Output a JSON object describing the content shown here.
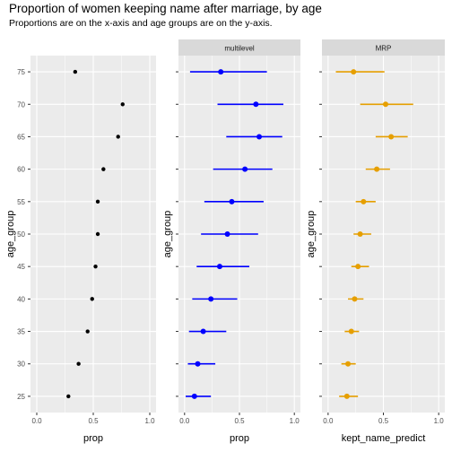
{
  "title": "Proportion of women keeping name after marriage, by age",
  "subtitle": "Proportions are on the x-axis and age groups are on the y-axis.",
  "colors": {
    "panel_bg": "#ebebeb",
    "grid": "#ffffff",
    "strip_bg": "#d9d9d9",
    "axis_text": "#4d4d4d",
    "multilevel": "#0000ff",
    "mrp": "#e69f00",
    "raw": "#000000"
  },
  "chart_data": [
    {
      "type": "scatter",
      "xlabel": "prop",
      "ylabel": "age_group",
      "strip": "",
      "xlim": [
        0,
        1
      ],
      "xticks": [
        "0.0",
        "0.5",
        "1.0"
      ],
      "categories": [
        "25",
        "30",
        "35",
        "40",
        "45",
        "50",
        "55",
        "60",
        "65",
        "70",
        "75"
      ],
      "points": [
        {
          "age_group": "75",
          "x": 0.34
        },
        {
          "age_group": "70",
          "x": 0.76
        },
        {
          "age_group": "65",
          "x": 0.72
        },
        {
          "age_group": "60",
          "x": 0.59
        },
        {
          "age_group": "55",
          "x": 0.54
        },
        {
          "age_group": "50",
          "x": 0.54
        },
        {
          "age_group": "45",
          "x": 0.52
        },
        {
          "age_group": "40",
          "x": 0.49
        },
        {
          "age_group": "35",
          "x": 0.45
        },
        {
          "age_group": "30",
          "x": 0.37
        },
        {
          "age_group": "25",
          "x": 0.28
        }
      ]
    },
    {
      "type": "scatter",
      "xlabel": "prop",
      "ylabel": "age_group",
      "strip": "multilevel",
      "xlim": [
        0,
        1
      ],
      "xticks": [
        "0.0",
        "0.5",
        "1.0"
      ],
      "categories": [
        "25",
        "30",
        "35",
        "40",
        "45",
        "50",
        "55",
        "60",
        "65",
        "70",
        "75"
      ],
      "points": [
        {
          "age_group": "75",
          "x": 0.33,
          "low": 0.05,
          "high": 0.75
        },
        {
          "age_group": "70",
          "x": 0.65,
          "low": 0.3,
          "high": 0.9
        },
        {
          "age_group": "65",
          "x": 0.68,
          "low": 0.38,
          "high": 0.89
        },
        {
          "age_group": "60",
          "x": 0.55,
          "low": 0.26,
          "high": 0.8
        },
        {
          "age_group": "55",
          "x": 0.43,
          "low": 0.18,
          "high": 0.72
        },
        {
          "age_group": "50",
          "x": 0.39,
          "low": 0.15,
          "high": 0.67
        },
        {
          "age_group": "45",
          "x": 0.32,
          "low": 0.11,
          "high": 0.59
        },
        {
          "age_group": "40",
          "x": 0.24,
          "low": 0.07,
          "high": 0.48
        },
        {
          "age_group": "35",
          "x": 0.17,
          "low": 0.04,
          "high": 0.38
        },
        {
          "age_group": "30",
          "x": 0.12,
          "low": 0.03,
          "high": 0.28
        },
        {
          "age_group": "25",
          "x": 0.09,
          "low": 0.01,
          "high": 0.24
        }
      ]
    },
    {
      "type": "scatter",
      "xlabel": "kept_name_predict",
      "ylabel": "age_group",
      "strip": "MRP",
      "xlim": [
        0,
        1
      ],
      "xticks": [
        "0.0",
        "0.5",
        "1.0"
      ],
      "categories": [
        "25",
        "30",
        "35",
        "40",
        "45",
        "50",
        "55",
        "60",
        "65",
        "70",
        "75"
      ],
      "points": [
        {
          "age_group": "75",
          "x": 0.23,
          "low": 0.07,
          "high": 0.51
        },
        {
          "age_group": "70",
          "x": 0.52,
          "low": 0.29,
          "high": 0.77
        },
        {
          "age_group": "65",
          "x": 0.57,
          "low": 0.43,
          "high": 0.72
        },
        {
          "age_group": "60",
          "x": 0.44,
          "low": 0.34,
          "high": 0.56
        },
        {
          "age_group": "55",
          "x": 0.32,
          "low": 0.25,
          "high": 0.43
        },
        {
          "age_group": "50",
          "x": 0.29,
          "low": 0.23,
          "high": 0.39
        },
        {
          "age_group": "45",
          "x": 0.27,
          "low": 0.21,
          "high": 0.37
        },
        {
          "age_group": "40",
          "x": 0.24,
          "low": 0.18,
          "high": 0.32
        },
        {
          "age_group": "35",
          "x": 0.21,
          "low": 0.15,
          "high": 0.28
        },
        {
          "age_group": "30",
          "x": 0.18,
          "low": 0.12,
          "high": 0.25
        },
        {
          "age_group": "25",
          "x": 0.17,
          "low": 0.1,
          "high": 0.27
        }
      ]
    }
  ]
}
